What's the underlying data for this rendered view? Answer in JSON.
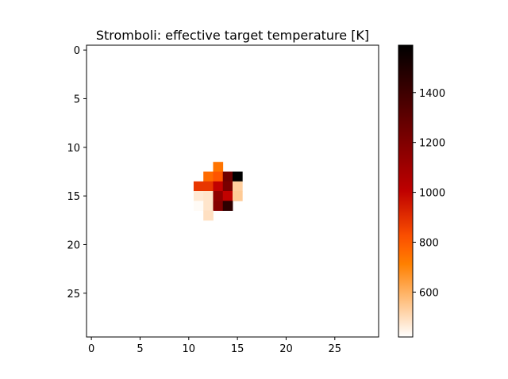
{
  "chart_data": {
    "type": "heatmap",
    "title": "Stromboli: effective target temperature [K]",
    "xlabel": "",
    "ylabel": "",
    "grid_size": [
      30,
      30
    ],
    "xlim": [
      -0.5,
      29.5
    ],
    "ylim": [
      29.5,
      -0.5
    ],
    "x_ticks": [
      0,
      5,
      10,
      15,
      20,
      25
    ],
    "y_ticks": [
      0,
      5,
      10,
      15,
      20,
      25
    ],
    "colormap": "gist_heat_r",
    "colorbar": {
      "vmin": 420,
      "vmax": 1590,
      "ticks": [
        600,
        800,
        1000,
        1200,
        1400
      ]
    },
    "cells": [
      {
        "row": 12,
        "col": 13,
        "value": 740
      },
      {
        "row": 13,
        "col": 12,
        "value": 760
      },
      {
        "row": 13,
        "col": 13,
        "value": 810
      },
      {
        "row": 13,
        "col": 14,
        "value": 1250
      },
      {
        "row": 13,
        "col": 15,
        "value": 1590
      },
      {
        "row": 14,
        "col": 11,
        "value": 880
      },
      {
        "row": 14,
        "col": 12,
        "value": 880
      },
      {
        "row": 14,
        "col": 13,
        "value": 1000
      },
      {
        "row": 14,
        "col": 14,
        "value": 1220
      },
      {
        "row": 14,
        "col": 15,
        "value": 530
      },
      {
        "row": 15,
        "col": 11,
        "value": 470
      },
      {
        "row": 15,
        "col": 12,
        "value": 480
      },
      {
        "row": 15,
        "col": 13,
        "value": 1150
      },
      {
        "row": 15,
        "col": 14,
        "value": 1000
      },
      {
        "row": 15,
        "col": 15,
        "value": 540
      },
      {
        "row": 16,
        "col": 11,
        "value": 430
      },
      {
        "row": 16,
        "col": 12,
        "value": 480
      },
      {
        "row": 16,
        "col": 13,
        "value": 1180
      },
      {
        "row": 16,
        "col": 14,
        "value": 1450
      },
      {
        "row": 17,
        "col": 12,
        "value": 490
      }
    ]
  }
}
